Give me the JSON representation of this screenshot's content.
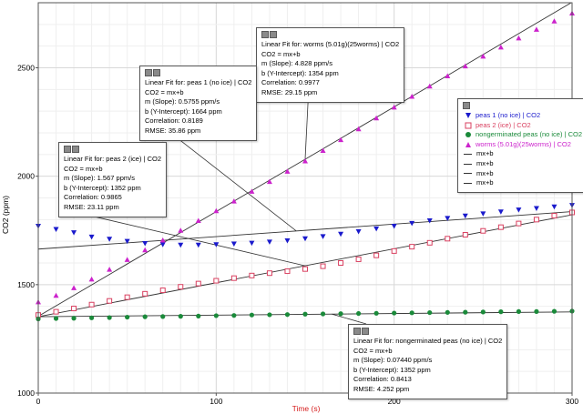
{
  "chart_data": {
    "type": "scatter",
    "xlabel": "Time (s)",
    "ylabel": "CO2 (ppm)",
    "xlim": [
      0,
      300
    ],
    "ylim": [
      1000,
      2800
    ],
    "x_ticks": [
      "0",
      "100",
      "200",
      "300"
    ],
    "y_ticks": [
      "1000",
      "1500",
      "2000",
      "2500"
    ],
    "grid": true,
    "legend_position": "right",
    "series": [
      {
        "name": "peas 1 (no ice) | CO2",
        "color": "#1a1acc",
        "marker": "triangle-down",
        "points": [
          [
            0,
            1770
          ],
          [
            10,
            1755
          ],
          [
            20,
            1740
          ],
          [
            30,
            1720
          ],
          [
            40,
            1710
          ],
          [
            50,
            1700
          ],
          [
            60,
            1690
          ],
          [
            70,
            1685
          ],
          [
            80,
            1683
          ],
          [
            90,
            1683
          ],
          [
            100,
            1685
          ],
          [
            110,
            1688
          ],
          [
            120,
            1692
          ],
          [
            130,
            1697
          ],
          [
            140,
            1703
          ],
          [
            150,
            1712
          ],
          [
            160,
            1722
          ],
          [
            170,
            1733
          ],
          [
            180,
            1745
          ],
          [
            190,
            1758
          ],
          [
            200,
            1770
          ],
          [
            210,
            1783
          ],
          [
            220,
            1795
          ],
          [
            230,
            1806
          ],
          [
            240,
            1817
          ],
          [
            250,
            1827
          ],
          [
            260,
            1836
          ],
          [
            270,
            1845
          ],
          [
            280,
            1852
          ],
          [
            290,
            1859
          ],
          [
            300,
            1866
          ]
        ]
      },
      {
        "name": "peas 2 (ice) | CO2",
        "color": "#d94060",
        "marker": "square-open",
        "points": [
          [
            0,
            1360
          ],
          [
            10,
            1375
          ],
          [
            20,
            1390
          ],
          [
            30,
            1408
          ],
          [
            40,
            1425
          ],
          [
            50,
            1442
          ],
          [
            60,
            1458
          ],
          [
            70,
            1474
          ],
          [
            80,
            1490
          ],
          [
            90,
            1505
          ],
          [
            100,
            1518
          ],
          [
            110,
            1530
          ],
          [
            120,
            1542
          ],
          [
            130,
            1553
          ],
          [
            140,
            1562
          ],
          [
            150,
            1572
          ],
          [
            160,
            1585
          ],
          [
            170,
            1600
          ],
          [
            180,
            1617
          ],
          [
            190,
            1635
          ],
          [
            200,
            1655
          ],
          [
            210,
            1675
          ],
          [
            220,
            1693
          ],
          [
            230,
            1712
          ],
          [
            240,
            1730
          ],
          [
            250,
            1748
          ],
          [
            260,
            1765
          ],
          [
            270,
            1782
          ],
          [
            280,
            1800
          ],
          [
            290,
            1818
          ],
          [
            300,
            1833
          ]
        ]
      },
      {
        "name": "nongerminated peas (no ice) | CO2",
        "color": "#1a8a3a",
        "marker": "circle",
        "points": [
          [
            0,
            1342
          ],
          [
            10,
            1344
          ],
          [
            20,
            1345
          ],
          [
            30,
            1347
          ],
          [
            40,
            1348
          ],
          [
            50,
            1350
          ],
          [
            60,
            1352
          ],
          [
            70,
            1353
          ],
          [
            80,
            1354
          ],
          [
            90,
            1355
          ],
          [
            100,
            1357
          ],
          [
            110,
            1358
          ],
          [
            120,
            1360
          ],
          [
            130,
            1361
          ],
          [
            140,
            1362
          ],
          [
            150,
            1364
          ],
          [
            160,
            1365
          ],
          [
            170,
            1366
          ],
          [
            180,
            1367
          ],
          [
            190,
            1368
          ],
          [
            200,
            1369
          ],
          [
            210,
            1370
          ],
          [
            220,
            1371
          ],
          [
            230,
            1372
          ],
          [
            240,
            1373
          ],
          [
            250,
            1374
          ],
          [
            260,
            1375
          ],
          [
            270,
            1376
          ],
          [
            280,
            1376
          ],
          [
            290,
            1377
          ],
          [
            300,
            1378
          ]
        ]
      },
      {
        "name": "worms (5.01g)(25worms) | CO2",
        "color": "#cc22cc",
        "marker": "triangle-up",
        "points": [
          [
            0,
            1420
          ],
          [
            10,
            1450
          ],
          [
            20,
            1485
          ],
          [
            30,
            1525
          ],
          [
            40,
            1570
          ],
          [
            50,
            1615
          ],
          [
            60,
            1660
          ],
          [
            70,
            1705
          ],
          [
            80,
            1750
          ],
          [
            90,
            1795
          ],
          [
            100,
            1840
          ],
          [
            110,
            1885
          ],
          [
            120,
            1930
          ],
          [
            130,
            1975
          ],
          [
            140,
            2022
          ],
          [
            150,
            2070
          ],
          [
            160,
            2118
          ],
          [
            170,
            2168
          ],
          [
            180,
            2218
          ],
          [
            190,
            2268
          ],
          [
            200,
            2318
          ],
          [
            210,
            2368
          ],
          [
            220,
            2415
          ],
          [
            230,
            2462
          ],
          [
            240,
            2508
          ],
          [
            250,
            2553
          ],
          [
            260,
            2595
          ],
          [
            270,
            2637
          ],
          [
            280,
            2677
          ],
          [
            290,
            2715
          ],
          [
            300,
            2752
          ]
        ]
      }
    ],
    "fits": [
      {
        "title": "Linear Fit for: worms (5.01g)(25worms) | CO2",
        "eq": "CO2 = mx+b",
        "slope": "m (Slope): 4.828 ppm/s",
        "intercept": "b (Y-Intercept): 1354 ppm",
        "corr": "Correlation: 0.9977",
        "rmse": "RMSE: 29.15 ppm",
        "m": 4.828,
        "b": 1354
      },
      {
        "title": "Linear Fit for: peas 1 (no ice) | CO2",
        "eq": "CO2 = mx+b",
        "slope": "m (Slope): 0.5755 ppm/s",
        "intercept": "b (Y-Intercept): 1664 ppm",
        "corr": "Correlation: 0.8189",
        "rmse": "RMSE: 35.86 ppm",
        "m": 0.5755,
        "b": 1664
      },
      {
        "title": "Linear Fit for: peas 2 (ice)  | CO2",
        "eq": "CO2 = mx+b",
        "slope": "m (Slope): 1.567 ppm/s",
        "intercept": "b (Y-Intercept): 1352 ppm",
        "corr": "Correlation: 0.9865",
        "rmse": "RMSE: 23.11 ppm",
        "m": 1.567,
        "b": 1352
      },
      {
        "title": "Linear Fit for: nongerminated peas (no ice) | CO2",
        "eq": "CO2 = mx+b",
        "slope": "m (Slope): 0.07440 ppm/s",
        "intercept": "b (Y-Intercept): 1352 ppm",
        "corr": "Correlation: 0.8413",
        "rmse": "RMSE: 4.252 ppm",
        "m": 0.0744,
        "b": 1352
      }
    ],
    "legend_fit_labels": [
      "mx+b",
      "mx+b",
      "mx+b",
      "mx+b"
    ]
  }
}
